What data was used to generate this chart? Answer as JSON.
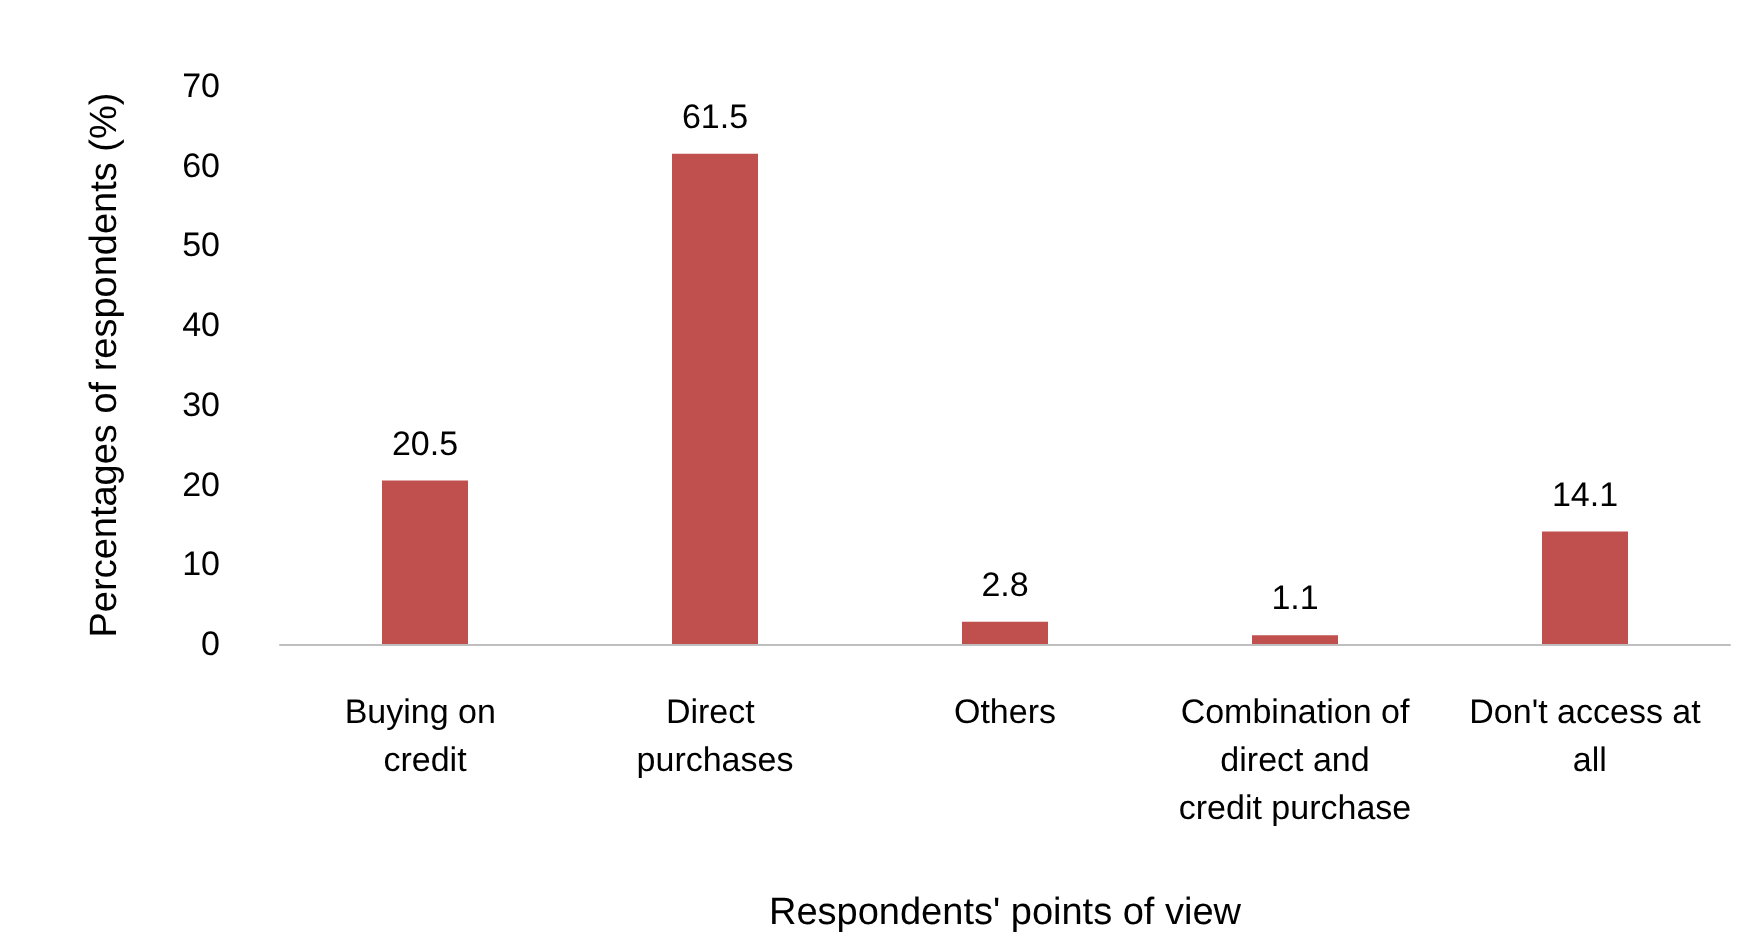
{
  "chart_data": {
    "type": "bar",
    "xlabel": "Respondents' points of view",
    "ylabel": "Percentages of respondents (%)",
    "categories": [
      "Buying on credit",
      "Direct purchases",
      "Others",
      "Combination of direct and credit purchase",
      "Don't access at all"
    ],
    "values": [
      20.5,
      61.5,
      2.8,
      1.1,
      14.1
    ],
    "color": "#c0504d",
    "data_labels": true,
    "ylim": [
      0,
      70
    ],
    "yticks": [
      0,
      10,
      20,
      30,
      40,
      50,
      60,
      70
    ],
    "grid": false
  }
}
